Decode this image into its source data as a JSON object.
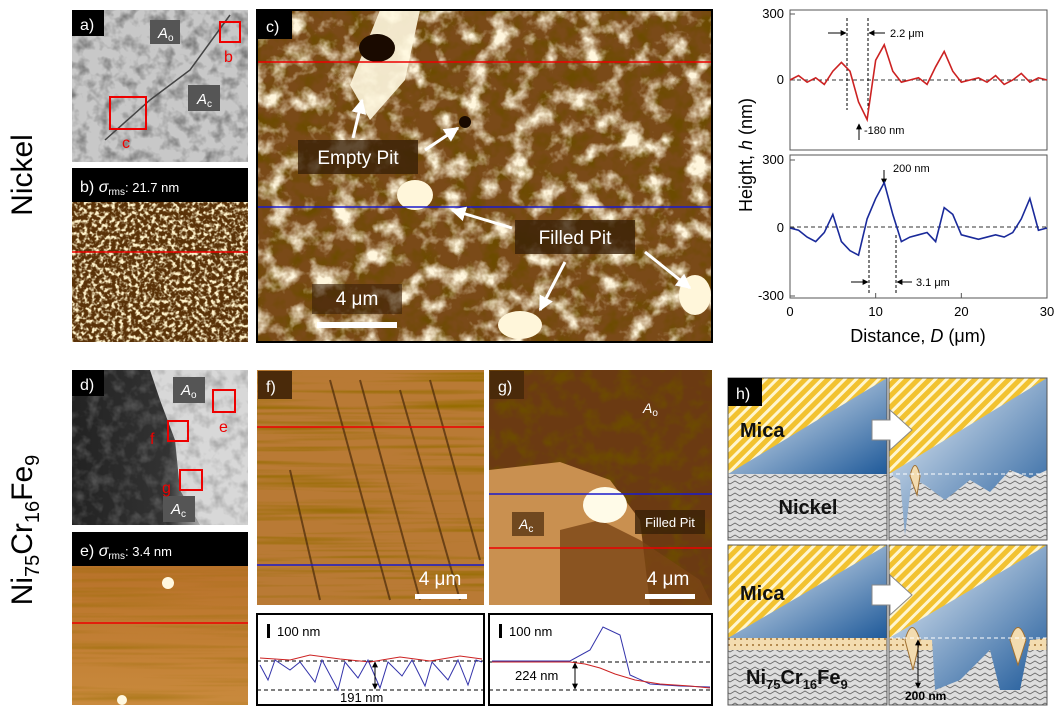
{
  "row_labels": {
    "nickel": "Nickel",
    "alloy": [
      "Ni",
      "75",
      "Cr",
      "16",
      "Fe",
      "9"
    ]
  },
  "panel_a": {
    "label": "a)",
    "a_o": [
      "A",
      "o"
    ],
    "a_c": [
      "A",
      "c"
    ],
    "box_b": "b",
    "box_c": "c"
  },
  "panel_b": {
    "label": "b)",
    "sigma": [
      "σ",
      "rms",
      ": 21.7 nm"
    ]
  },
  "panel_c": {
    "label": "c)",
    "empty_pit": "Empty Pit",
    "filled_pit": "Filled Pit",
    "scale": "4 μm"
  },
  "profiles": {
    "x_label": [
      "Distance, ",
      "D",
      " (μm)"
    ],
    "y_label": [
      "Height, ",
      "h",
      " (nm)"
    ],
    "x": [
      0,
      1,
      2,
      3,
      4,
      5,
      6,
      7,
      8,
      9,
      10,
      11,
      12,
      13,
      14,
      15,
      16,
      17,
      18,
      19,
      20,
      21,
      22,
      23,
      24,
      25,
      26,
      27,
      28,
      29,
      30
    ],
    "xlim": [
      0,
      30
    ],
    "xticks": [
      0,
      10,
      20,
      30
    ],
    "top": {
      "color": "#cc2222",
      "ylim": [
        -300,
        300
      ],
      "yticks": [
        300,
        0
      ],
      "values": [
        0,
        20,
        -10,
        10,
        -20,
        40,
        80,
        40,
        -100,
        -180,
        90,
        160,
        40,
        -10,
        0,
        10,
        -20,
        60,
        130,
        40,
        -10,
        0,
        10,
        -10,
        20,
        -20,
        0,
        30,
        -10,
        10,
        0
      ]
    },
    "bottom": {
      "color": "#1a2a9a",
      "ylim": [
        -300,
        300
      ],
      "yticks": [
        300,
        0,
        -300
      ],
      "values": [
        0,
        -10,
        -40,
        -60,
        -20,
        60,
        -60,
        -100,
        -120,
        40,
        130,
        200,
        60,
        -60,
        -40,
        -30,
        -20,
        -60,
        90,
        60,
        -30,
        -40,
        -50,
        -40,
        -30,
        -40,
        -20,
        40,
        130,
        -10,
        0
      ]
    },
    "spacing_top": "2.2 μm",
    "dip": "-180 nm",
    "peak": "200 nm",
    "spacing_bottom": "3.1 μm"
  },
  "panel_d": {
    "label": "d)",
    "a_o": [
      "A",
      "o"
    ],
    "a_c": [
      "A",
      "c"
    ],
    "box_e": "e",
    "box_f": "f",
    "box_g": "g"
  },
  "panel_e": {
    "label": "e)",
    "sigma": [
      "σ",
      "rms",
      ": 3.4 nm"
    ]
  },
  "panel_f": {
    "label": "f)",
    "scale": "4 μm",
    "scale_bar": "100 nm",
    "depth": "191 nm"
  },
  "panel_g": {
    "label": "g)",
    "a_o": [
      "A",
      "o"
    ],
    "a_c": [
      "A",
      "c"
    ],
    "filled_pit": "Filled Pit",
    "scale": "4 μm",
    "scale_bar": "100 nm",
    "height": "224 nm"
  },
  "panel_h": {
    "label": "h)",
    "mica_top": "Mica",
    "nickel": "Nickel",
    "mica_bottom": "Mica",
    "alloy": [
      "Ni",
      "75",
      "Cr",
      "16",
      "Fe",
      "9"
    ],
    "depth": "200 nm"
  }
}
